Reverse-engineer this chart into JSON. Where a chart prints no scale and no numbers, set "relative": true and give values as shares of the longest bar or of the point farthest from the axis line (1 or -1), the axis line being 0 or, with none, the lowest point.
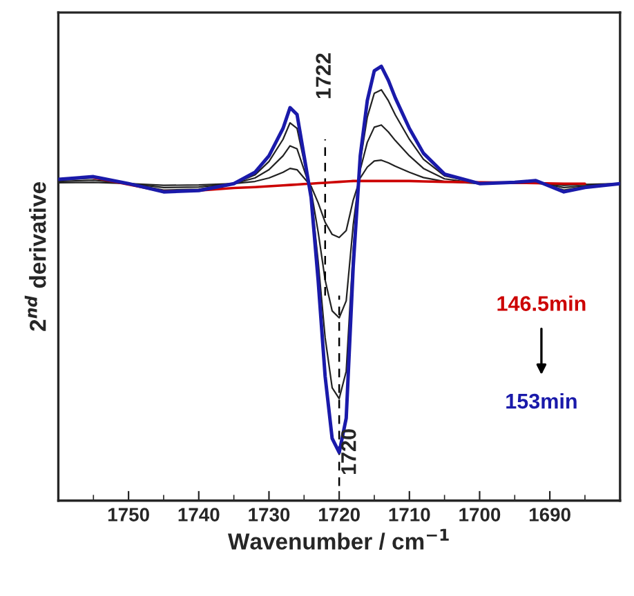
{
  "chart_data": {
    "type": "line",
    "relative": true,
    "xlabel": "Wavenumber / cm$^{−1}$",
    "ylabel": "2$^{nd}$ derivative",
    "x": [
      1760,
      1755,
      1750,
      1745,
      1740,
      1735,
      1732,
      1730,
      1728,
      1727,
      1726,
      1725,
      1724,
      1723,
      1722,
      1721,
      1720,
      1719,
      1718,
      1717,
      1716,
      1715,
      1714,
      1713,
      1712,
      1710,
      1708,
      1705,
      1700,
      1695,
      1692,
      1688,
      1685,
      1680
    ],
    "xlim": [
      1760,
      1680
    ],
    "xticks": [
      1750,
      1740,
      1730,
      1720,
      1710,
      1700,
      1690
    ],
    "series": [
      {
        "color": "#cc0000",
        "values": [
          null,
          0.744,
          0.728,
          0.712,
          0.714,
          0.72,
          0.722,
          0.724,
          0.726,
          0.727,
          0.728,
          0.729,
          0.73,
          0.731,
          0.732,
          0.733,
          0.734,
          0.735,
          0.736,
          0.736,
          0.736,
          0.736,
          0.736,
          0.736,
          0.736,
          0.736,
          0.735,
          0.734,
          0.733,
          0.732,
          0.731,
          0.73,
          0.73,
          null
        ]
      },
      {
        "color": "#222222",
        "values": [
          0.732,
          0.733,
          0.73,
          0.726,
          0.727,
          0.73,
          0.735,
          0.743,
          0.756,
          0.765,
          0.762,
          0.743,
          0.724,
          0.686,
          0.641,
          0.613,
          0.606,
          0.622,
          0.692,
          0.743,
          0.768,
          0.782,
          0.784,
          0.778,
          0.77,
          0.756,
          0.744,
          0.735,
          0.73,
          0.731,
          0.731,
          0.726,
          0.728,
          0.73
        ]
      },
      {
        "color": "#222222",
        "values": [
          0.735,
          0.738,
          0.73,
          0.721,
          0.722,
          0.73,
          0.743,
          0.762,
          0.794,
          0.817,
          0.81,
          0.762,
          0.714,
          0.619,
          0.508,
          0.437,
          0.421,
          0.46,
          0.635,
          0.762,
          0.825,
          0.86,
          0.865,
          0.849,
          0.829,
          0.794,
          0.765,
          0.741,
          0.73,
          0.732,
          0.733,
          0.721,
          0.725,
          0.73
        ]
      },
      {
        "color": "#222222",
        "values": [
          0.738,
          0.743,
          0.73,
          0.715,
          0.717,
          0.73,
          0.75,
          0.781,
          0.832,
          0.87,
          0.857,
          0.781,
          0.705,
          0.552,
          0.375,
          0.26,
          0.235,
          0.298,
          0.578,
          0.781,
          0.883,
          0.938,
          0.946,
          0.921,
          0.888,
          0.832,
          0.786,
          0.748,
          0.73,
          0.733,
          0.735,
          0.715,
          0.723,
          0.73
        ]
      },
      {
        "color": "#1a1aaa",
        "values": [
          0.74,
          0.746,
          0.73,
          0.711,
          0.714,
          0.73,
          0.756,
          0.794,
          0.857,
          0.905,
          0.889,
          0.794,
          0.698,
          0.508,
          0.286,
          0.143,
          0.111,
          0.19,
          0.54,
          0.794,
          0.921,
          0.99,
          1.0,
          0.968,
          0.927,
          0.857,
          0.8,
          0.752,
          0.73,
          0.733,
          0.737,
          0.711,
          0.721,
          0.73
        ]
      }
    ],
    "ref_lines": [
      {
        "axis": "x",
        "value": 1722,
        "label": "1722",
        "line_style": "dashed"
      },
      {
        "axis": "x",
        "value": 1720,
        "label": "1720",
        "line_style": "dashed"
      }
    ],
    "annotations": [
      "146.5min",
      "153min"
    ],
    "grid": false,
    "legend": false
  }
}
